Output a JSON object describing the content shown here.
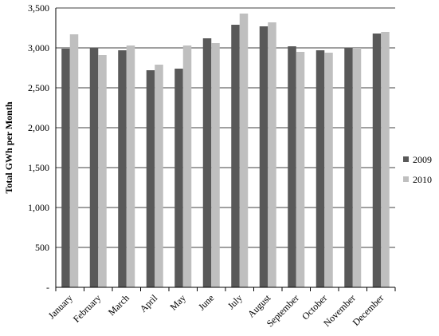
{
  "chart_data": {
    "type": "bar",
    "ylabel": "Total GWh per Month",
    "xlabel": "",
    "ylim": [
      0,
      3500
    ],
    "yticks": [
      0,
      500,
      1000,
      1500,
      2000,
      2500,
      3000,
      3500
    ],
    "ytick_labels": [
      "-",
      "500",
      "1,000",
      "1,500",
      "2,000",
      "2,500",
      "3,000",
      "3,500"
    ],
    "grid": "horizontal",
    "legend_position": "right",
    "categories": [
      "January",
      "February",
      "March",
      "April",
      "May",
      "June",
      "July",
      "August",
      "September",
      "October",
      "November",
      "December"
    ],
    "series": [
      {
        "name": "2009",
        "color": "#595959",
        "values": [
          2990,
          3000,
          2970,
          2720,
          2740,
          3120,
          3290,
          3270,
          3020,
          2970,
          3000,
          3180
        ]
      },
      {
        "name": "2010",
        "color": "#bfbfbf",
        "values": [
          3170,
          2910,
          3030,
          2790,
          3030,
          3060,
          3430,
          3320,
          2950,
          2940,
          3000,
          3200
        ]
      }
    ]
  }
}
